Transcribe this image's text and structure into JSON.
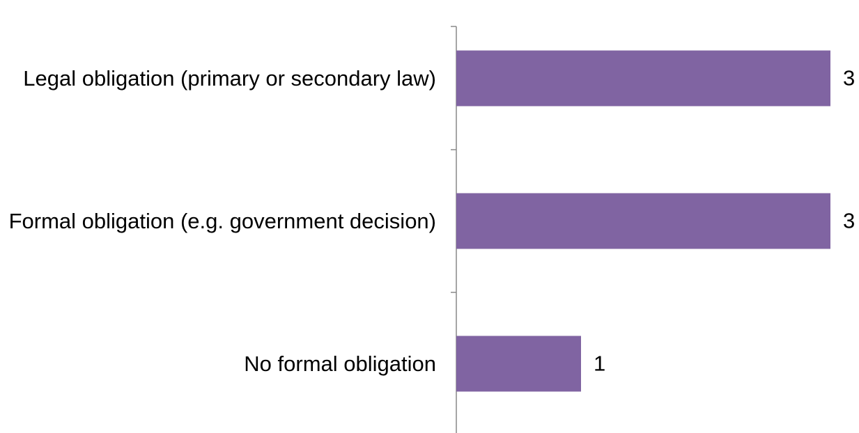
{
  "chart_data": {
    "type": "bar",
    "orientation": "horizontal",
    "categories": [
      "Legal obligation (primary or secondary law)",
      "Formal obligation (e.g. government decision)",
      "No formal obligation"
    ],
    "values": [
      3,
      3,
      1
    ],
    "color": "#8064a2",
    "xlim": [
      0,
      3
    ]
  }
}
